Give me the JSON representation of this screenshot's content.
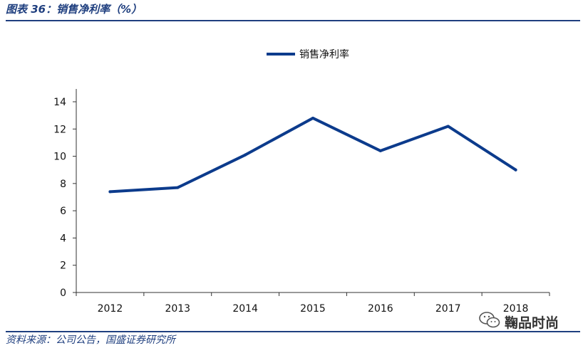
{
  "header": {
    "title": "图表 36：销售净利率（%）"
  },
  "footer": {
    "source": "资料来源：公司公告，国盛证券研究所"
  },
  "watermark": {
    "text": "鞠品时尚",
    "icon": "wechat-icon"
  },
  "colors": {
    "accent": "#1f3f7f",
    "series": "#0c3b8c"
  },
  "chart_data": {
    "type": "line",
    "categories": [
      "2012",
      "2013",
      "2014",
      "2015",
      "2016",
      "2017",
      "2018"
    ],
    "series": [
      {
        "name": "销售净利率",
        "values": [
          7.4,
          7.7,
          10.1,
          12.8,
          10.4,
          12.2,
          9.0
        ]
      }
    ],
    "yticks": [
      "0",
      "2",
      "4",
      "6",
      "8",
      "10",
      "12",
      "14"
    ],
    "ylim": [
      0,
      14
    ],
    "grid": false,
    "legend": "top-center",
    "title": "",
    "xlabel": "",
    "ylabel": ""
  }
}
